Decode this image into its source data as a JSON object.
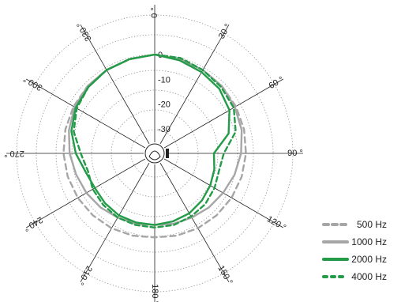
{
  "chart_data": {
    "type": "polar",
    "angle_labels": [
      "0",
      "30",
      "60",
      "90",
      "120",
      "150",
      "180",
      "210",
      "240",
      "270",
      "300",
      "330"
    ],
    "radial_ticks": [
      0,
      -10,
      -20,
      -30
    ],
    "radial_tick_labels": [
      "0",
      "-10",
      "-20",
      "-30"
    ],
    "rlim": [
      -40,
      0
    ],
    "degree_symbol": "°",
    "colors": {
      "grid": "#888888",
      "axis": "#222222",
      "gray": "#a6a6a6",
      "green": "#239b48"
    },
    "series": [
      {
        "name": "500 Hz",
        "color": "#a6a6a6",
        "style": "dashed",
        "angles": [
          0,
          15,
          30,
          45,
          60,
          75,
          90,
          105,
          120,
          135,
          150,
          165,
          180,
          195,
          210,
          225,
          240,
          255,
          270,
          285,
          300,
          315,
          330,
          345,
          360
        ],
        "values": [
          0,
          -0.5,
          -1,
          -1.5,
          -2,
          -2.5,
          -3,
          -3.5,
          -4,
          -4.5,
          -5,
          -5.5,
          -6,
          -5.5,
          -5,
          -4.5,
          -4,
          -3.5,
          -3,
          -2.5,
          -2,
          -1.5,
          -1,
          -0.5,
          0
        ]
      },
      {
        "name": "1000 Hz",
        "color": "#a6a6a6",
        "style": "solid",
        "angles": [
          0,
          15,
          30,
          45,
          60,
          75,
          90,
          105,
          120,
          135,
          150,
          165,
          180,
          195,
          210,
          225,
          240,
          255,
          270,
          285,
          300,
          315,
          330,
          345,
          360
        ],
        "values": [
          0,
          -0.5,
          -1,
          -1.5,
          -2.5,
          -3.5,
          -5,
          -6.5,
          -8,
          -9,
          -10,
          -10.5,
          -11,
          -10.5,
          -10,
          -9,
          -8,
          -7,
          -5.5,
          -4,
          -2.5,
          -1.5,
          -1,
          -0.5,
          0
        ]
      },
      {
        "name": "2000 Hz",
        "color": "#239b48",
        "style": "solid",
        "angles": [
          0,
          15,
          30,
          45,
          60,
          75,
          90,
          105,
          120,
          135,
          150,
          165,
          180,
          195,
          210,
          225,
          240,
          255,
          270,
          285,
          300,
          315,
          330,
          345,
          360
        ],
        "values": [
          0,
          -1,
          -2,
          -3,
          -5,
          -9,
          -16,
          -15,
          -14,
          -13,
          -12,
          -11.5,
          -11,
          -11,
          -11,
          -11.5,
          -12,
          -11,
          -8,
          -5,
          -3,
          -2,
          -1,
          -0.5,
          0
        ]
      },
      {
        "name": "4000 Hz",
        "color": "#239b48",
        "style": "dashed",
        "angles": [
          0,
          15,
          30,
          45,
          60,
          75,
          90,
          105,
          120,
          135,
          150,
          165,
          180,
          195,
          210,
          225,
          240,
          255,
          270,
          285,
          300,
          315,
          330,
          345,
          360
        ],
        "values": [
          0,
          0,
          -1,
          -2,
          -3,
          -6,
          -12,
          -13,
          -12,
          -11,
          -10.5,
          -10,
          -10,
          -10,
          -10,
          -10.5,
          -11,
          -12,
          -10,
          -6,
          -3.5,
          -2,
          -1,
          -0.5,
          0
        ]
      }
    ],
    "legend_position": "bottom-right"
  }
}
